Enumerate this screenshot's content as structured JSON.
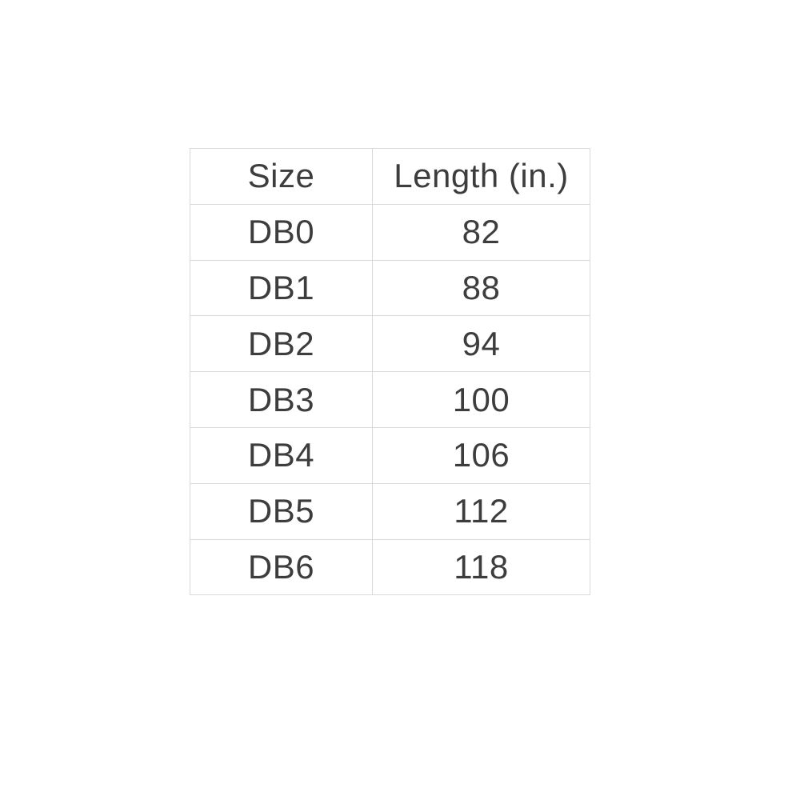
{
  "colors": {
    "background": "#ffffff",
    "border": "#d9d9d9",
    "text": "#3d3d3d"
  },
  "chart_data": {
    "type": "table",
    "title": "",
    "columns": [
      "Size",
      "Length (in.)"
    ],
    "rows": [
      [
        "DB0",
        "82"
      ],
      [
        "DB1",
        "88"
      ],
      [
        "DB2",
        "94"
      ],
      [
        "DB3",
        "100"
      ],
      [
        "DB4",
        "106"
      ],
      [
        "DB5",
        "112"
      ],
      [
        "DB6",
        "118"
      ]
    ]
  }
}
